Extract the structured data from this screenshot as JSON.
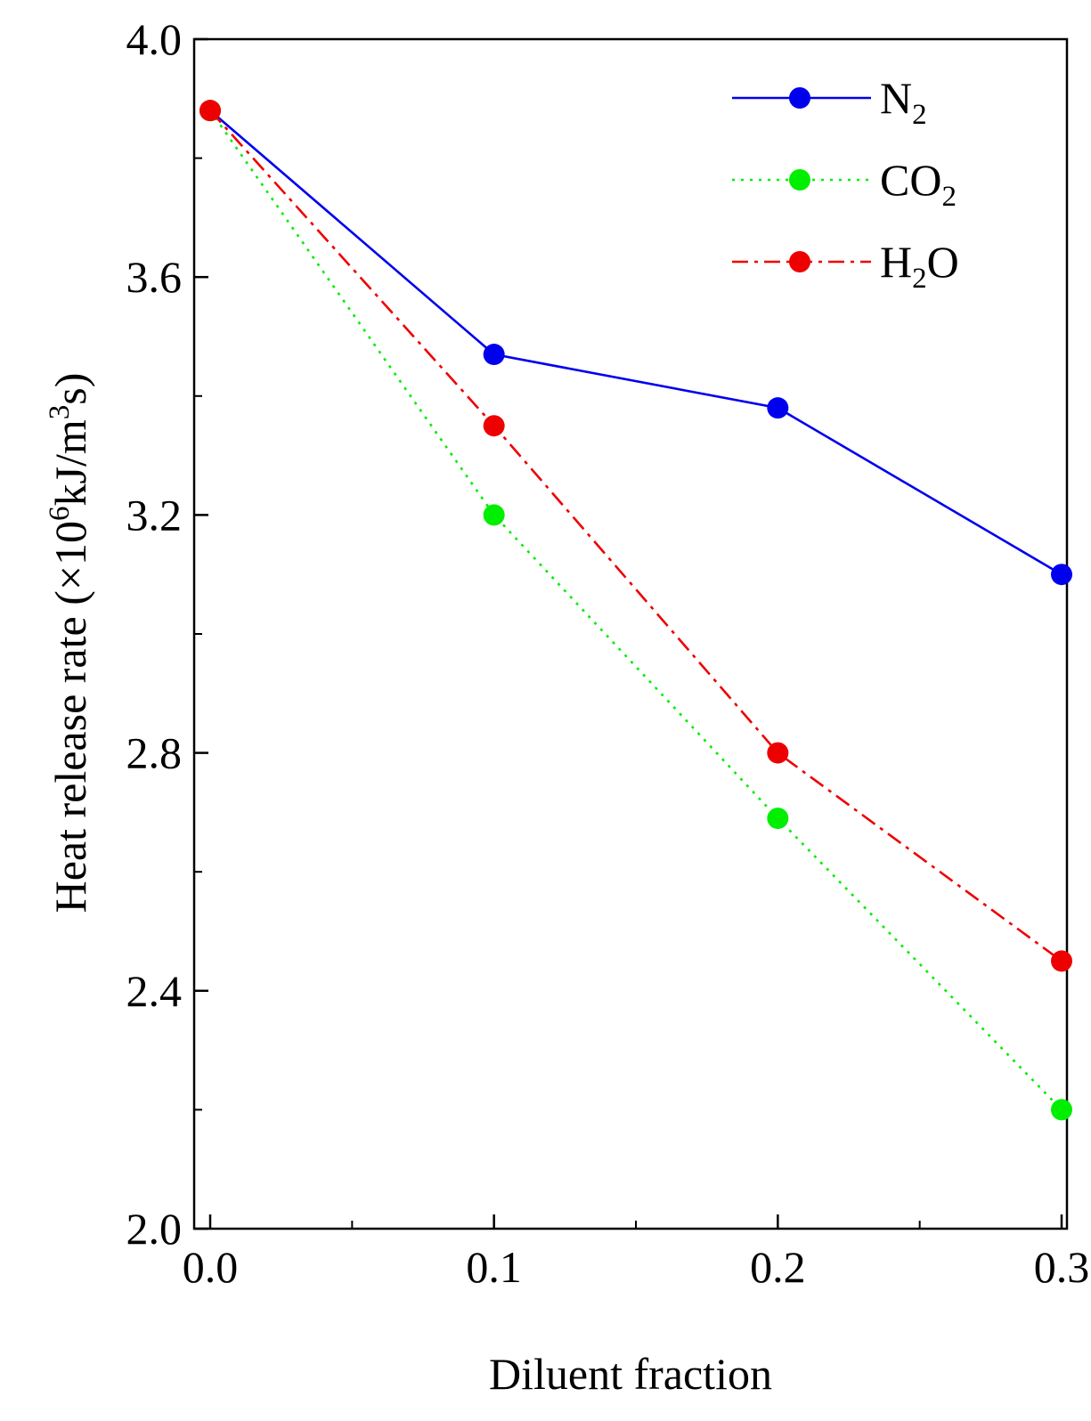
{
  "chart_data": {
    "type": "line",
    "xlabel": "Diluent fraction",
    "ylabel": {
      "parts": [
        {
          "t": "Heat release rate (×10",
          "s": "normal"
        },
        {
          "t": "6",
          "s": "super"
        },
        {
          "t": "kJ/m",
          "s": "normal"
        },
        {
          "t": "3",
          "s": "super"
        },
        {
          "t": "s)",
          "s": "normal"
        }
      ]
    },
    "xlim": [
      0.0,
      0.3
    ],
    "ylim": [
      2.0,
      4.0
    ],
    "xticks": [
      0.0,
      0.1,
      0.2,
      0.3
    ],
    "xtick_labels": [
      "0.0",
      "0.1",
      "0.2",
      "0.3"
    ],
    "x_minor_step": 0.05,
    "yticks": [
      2.0,
      2.4,
      2.8,
      3.2,
      3.6,
      4.0
    ],
    "ytick_labels": [
      "2.0",
      "2.4",
      "2.8",
      "3.2",
      "3.6",
      "4.0"
    ],
    "y_minor_step": 0.2,
    "grid": false,
    "legend_position": "top-right",
    "x": [
      0.0,
      0.1,
      0.2,
      0.3
    ],
    "series": [
      {
        "key": "n2",
        "label_parts": [
          {
            "t": "N",
            "s": "normal"
          },
          {
            "t": "2",
            "s": "sub"
          }
        ],
        "values": [
          3.88,
          3.47,
          3.38,
          3.1
        ],
        "color": "#0000ee",
        "line_style": "solid"
      },
      {
        "key": "co2",
        "label_parts": [
          {
            "t": "CO",
            "s": "normal"
          },
          {
            "t": "2",
            "s": "sub"
          }
        ],
        "values": [
          3.88,
          3.2,
          2.69,
          2.2
        ],
        "color": "#00ee00",
        "line_style": "dotted"
      },
      {
        "key": "h2o",
        "label_parts": [
          {
            "t": "H",
            "s": "normal"
          },
          {
            "t": "2",
            "s": "sub"
          },
          {
            "t": "O",
            "s": "normal"
          }
        ],
        "values": [
          3.88,
          3.35,
          2.8,
          2.45
        ],
        "color": "#ee0000",
        "line_style": "dashdot"
      }
    ]
  }
}
